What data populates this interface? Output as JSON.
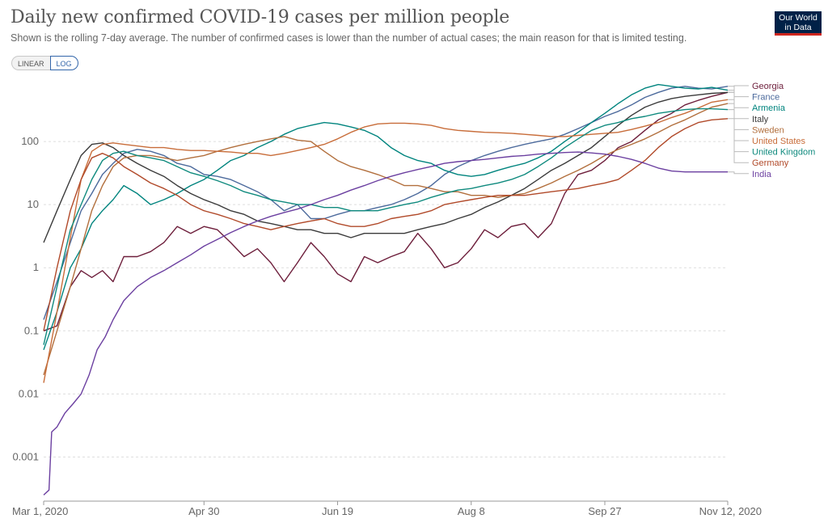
{
  "header": {
    "title": "Daily new confirmed COVID-19 cases per million people",
    "subtitle": "Shown is the rolling 7-day average. The number of confirmed cases is lower than the number of actual cases; the main reason for that is limited testing.",
    "logo_line1": "Our World",
    "logo_line2": "in Data"
  },
  "controls": {
    "linear_label": "LINEAR",
    "log_label": "LOG",
    "selected": "LOG"
  },
  "chart_data": {
    "type": "line",
    "title": "Daily new confirmed COVID-19 cases per million people",
    "xlabel": "",
    "ylabel": "",
    "yscale": "log",
    "ylim": [
      0.0002,
      1000
    ],
    "xlim": [
      0,
      256
    ],
    "x_unit": "days since Mar 1, 2020",
    "x_ticks": [
      {
        "day": 0,
        "label": "Mar 1, 2020"
      },
      {
        "day": 60,
        "label": "Apr 30"
      },
      {
        "day": 110,
        "label": "Jun 19"
      },
      {
        "day": 160,
        "label": "Aug 8"
      },
      {
        "day": 210,
        "label": "Sep 27"
      },
      {
        "day": 256,
        "label": "Nov 12, 2020"
      }
    ],
    "y_ticks": [
      {
        "value": 0.001,
        "label": "0.001"
      },
      {
        "value": 0.01,
        "label": "0.01"
      },
      {
        "value": 0.1,
        "label": "0.1"
      },
      {
        "value": 1,
        "label": "1"
      },
      {
        "value": 10,
        "label": "10"
      },
      {
        "value": 100,
        "label": "100"
      }
    ],
    "series": [
      {
        "name": "Georgia",
        "color": "#6d1e3b",
        "x": [
          0,
          5,
          10,
          14,
          18,
          22,
          26,
          30,
          35,
          40,
          45,
          50,
          55,
          60,
          65,
          70,
          75,
          80,
          85,
          90,
          95,
          100,
          105,
          110,
          115,
          120,
          125,
          130,
          135,
          140,
          145,
          150,
          155,
          160,
          165,
          170,
          175,
          180,
          185,
          190,
          195,
          200,
          205,
          210,
          215,
          220,
          225,
          230,
          235,
          240,
          245,
          250,
          256
        ],
        "values": [
          0.1,
          0.12,
          0.5,
          0.9,
          0.7,
          0.9,
          0.6,
          1.5,
          1.5,
          1.8,
          2.5,
          4.5,
          3.5,
          4.5,
          4,
          2.5,
          1.5,
          2,
          1.2,
          0.6,
          1.2,
          2.5,
          1.5,
          0.8,
          0.6,
          1.5,
          1.2,
          1.5,
          1.8,
          3.5,
          2,
          1,
          1.2,
          2,
          4,
          3,
          4.5,
          5,
          3,
          5,
          15,
          30,
          35,
          50,
          80,
          100,
          150,
          220,
          280,
          380,
          450,
          520,
          600
        ]
      },
      {
        "name": "France",
        "color": "#4c6a9c",
        "x": [
          0,
          5,
          10,
          14,
          18,
          22,
          26,
          30,
          35,
          40,
          45,
          50,
          55,
          60,
          65,
          70,
          75,
          80,
          85,
          90,
          95,
          100,
          105,
          110,
          115,
          120,
          125,
          130,
          135,
          140,
          145,
          150,
          155,
          160,
          165,
          170,
          175,
          180,
          185,
          190,
          195,
          200,
          205,
          210,
          215,
          220,
          225,
          230,
          235,
          240,
          245,
          250,
          256
        ],
        "values": [
          0.15,
          0.6,
          2.5,
          8,
          15,
          30,
          45,
          65,
          75,
          70,
          60,
          45,
          40,
          30,
          28,
          25,
          20,
          16,
          12,
          8,
          10,
          6,
          6,
          7,
          8,
          8,
          9,
          10,
          12,
          15,
          20,
          30,
          40,
          50,
          60,
          70,
          80,
          90,
          100,
          110,
          130,
          160,
          200,
          250,
          300,
          380,
          500,
          600,
          700,
          750,
          700,
          680,
          750
        ]
      },
      {
        "name": "Armenia",
        "color": "#00847e",
        "x": [
          0,
          5,
          10,
          14,
          18,
          22,
          26,
          30,
          35,
          40,
          45,
          50,
          55,
          60,
          65,
          70,
          75,
          80,
          85,
          90,
          95,
          100,
          105,
          110,
          115,
          120,
          125,
          130,
          135,
          140,
          145,
          150,
          155,
          160,
          165,
          170,
          175,
          180,
          185,
          190,
          195,
          200,
          205,
          210,
          215,
          220,
          225,
          230,
          235,
          240,
          245,
          250,
          256
        ],
        "values": [
          0.05,
          0.2,
          1,
          2,
          5,
          8,
          12,
          20,
          15,
          10,
          12,
          15,
          20,
          25,
          35,
          50,
          60,
          80,
          100,
          130,
          160,
          180,
          200,
          190,
          170,
          150,
          120,
          80,
          60,
          50,
          45,
          35,
          30,
          28,
          30,
          35,
          40,
          45,
          55,
          70,
          100,
          140,
          200,
          280,
          400,
          550,
          700,
          800,
          750,
          700,
          680,
          720,
          650
        ]
      },
      {
        "name": "Italy",
        "color": "#3b3b3b",
        "x": [
          0,
          5,
          10,
          14,
          18,
          22,
          26,
          30,
          35,
          40,
          45,
          50,
          55,
          60,
          65,
          70,
          75,
          80,
          85,
          90,
          95,
          100,
          105,
          110,
          115,
          120,
          125,
          130,
          135,
          140,
          145,
          150,
          155,
          160,
          165,
          170,
          175,
          180,
          185,
          190,
          195,
          200,
          205,
          210,
          215,
          220,
          225,
          230,
          235,
          240,
          245,
          250,
          256
        ],
        "values": [
          2.5,
          8,
          25,
          60,
          90,
          95,
          80,
          60,
          45,
          35,
          28,
          20,
          15,
          12,
          10,
          8,
          7,
          5.5,
          5,
          4.5,
          4,
          4,
          3.5,
          3.5,
          3,
          3.5,
          3.5,
          3.5,
          3.5,
          4,
          4.5,
          5,
          6,
          7,
          9,
          11,
          14,
          18,
          25,
          35,
          45,
          60,
          80,
          120,
          180,
          260,
          350,
          420,
          480,
          520,
          550,
          580,
          600
        ]
      },
      {
        "name": "Sweden",
        "color": "#b26f3d",
        "x": [
          0,
          5,
          10,
          14,
          18,
          22,
          26,
          30,
          35,
          40,
          45,
          50,
          55,
          60,
          65,
          70,
          75,
          80,
          85,
          90,
          95,
          100,
          105,
          110,
          115,
          120,
          125,
          130,
          135,
          140,
          145,
          150,
          155,
          160,
          165,
          170,
          175,
          180,
          185,
          190,
          195,
          200,
          205,
          210,
          215,
          220,
          225,
          230,
          235,
          240,
          245,
          250,
          256
        ],
        "values": [
          0.02,
          0.1,
          0.5,
          2,
          8,
          20,
          40,
          55,
          60,
          60,
          55,
          50,
          55,
          60,
          70,
          80,
          90,
          100,
          110,
          120,
          105,
          100,
          70,
          50,
          40,
          35,
          30,
          25,
          20,
          20,
          18,
          16,
          16,
          14,
          14,
          13,
          14,
          15,
          18,
          22,
          28,
          35,
          45,
          60,
          75,
          90,
          110,
          140,
          180,
          220,
          280,
          350,
          400
        ]
      },
      {
        "name": "United States",
        "color": "#c86d3a",
        "x": [
          0,
          5,
          10,
          14,
          18,
          22,
          26,
          30,
          35,
          40,
          45,
          50,
          55,
          60,
          65,
          70,
          75,
          80,
          85,
          90,
          95,
          100,
          105,
          110,
          115,
          120,
          125,
          130,
          135,
          140,
          145,
          150,
          155,
          160,
          165,
          170,
          175,
          180,
          185,
          190,
          195,
          200,
          205,
          210,
          215,
          220,
          225,
          230,
          235,
          240,
          245,
          250,
          256
        ],
        "values": [
          0.015,
          0.2,
          3,
          25,
          70,
          90,
          95,
          90,
          85,
          80,
          80,
          75,
          72,
          72,
          70,
          68,
          65,
          65,
          60,
          65,
          72,
          80,
          90,
          110,
          140,
          170,
          190,
          195,
          195,
          190,
          180,
          160,
          150,
          145,
          140,
          138,
          135,
          130,
          125,
          120,
          120,
          125,
          130,
          135,
          140,
          155,
          175,
          200,
          240,
          280,
          340,
          420,
          460
        ]
      },
      {
        "name": "United Kingdom",
        "color": "#0f8a7e",
        "x": [
          0,
          5,
          10,
          14,
          18,
          22,
          26,
          30,
          35,
          40,
          45,
          50,
          55,
          60,
          65,
          70,
          75,
          80,
          85,
          90,
          95,
          100,
          105,
          110,
          115,
          120,
          125,
          130,
          135,
          140,
          145,
          150,
          155,
          160,
          165,
          170,
          175,
          180,
          185,
          190,
          195,
          200,
          205,
          210,
          215,
          220,
          225,
          230,
          235,
          240,
          245,
          250,
          256
        ],
        "values": [
          0.06,
          0.5,
          4,
          10,
          25,
          50,
          65,
          70,
          60,
          55,
          50,
          40,
          32,
          28,
          24,
          20,
          16,
          14,
          12,
          11,
          10,
          10,
          9,
          9,
          8,
          8,
          8,
          9,
          10,
          11,
          13,
          15,
          17,
          18,
          20,
          22,
          25,
          30,
          40,
          55,
          80,
          110,
          150,
          180,
          200,
          230,
          250,
          280,
          300,
          320,
          330,
          330,
          320
        ]
      },
      {
        "name": "Germany",
        "color": "#b14a2a",
        "x": [
          0,
          5,
          10,
          14,
          18,
          22,
          26,
          30,
          35,
          40,
          45,
          50,
          55,
          60,
          65,
          70,
          75,
          80,
          85,
          90,
          95,
          100,
          105,
          110,
          115,
          120,
          125,
          130,
          135,
          140,
          145,
          150,
          155,
          160,
          165,
          170,
          175,
          180,
          185,
          190,
          195,
          200,
          205,
          210,
          215,
          220,
          225,
          230,
          235,
          240,
          245,
          250,
          256
        ],
        "values": [
          0.1,
          1,
          8,
          25,
          55,
          65,
          55,
          40,
          30,
          22,
          18,
          14,
          10,
          8,
          7,
          6,
          5,
          4.5,
          4,
          4.5,
          5,
          5.5,
          6,
          5,
          4.5,
          4.5,
          5,
          6,
          6.5,
          7,
          8,
          10,
          11,
          12,
          13,
          14,
          14,
          14,
          15,
          16,
          17,
          18,
          20,
          22,
          25,
          35,
          50,
          80,
          120,
          160,
          200,
          220,
          230
        ]
      },
      {
        "name": "India",
        "color": "#6b3fa0",
        "x": [
          0,
          2,
          3,
          5,
          8,
          11,
          14,
          17,
          20,
          23,
          26,
          30,
          35,
          40,
          45,
          50,
          55,
          60,
          65,
          70,
          75,
          80,
          85,
          90,
          95,
          100,
          105,
          110,
          115,
          120,
          125,
          130,
          135,
          140,
          145,
          150,
          155,
          160,
          165,
          170,
          175,
          180,
          185,
          190,
          195,
          200,
          205,
          210,
          215,
          220,
          225,
          230,
          235,
          240,
          245,
          250,
          256
        ],
        "values": [
          0.00025,
          0.0003,
          0.0025,
          0.003,
          0.005,
          0.007,
          0.01,
          0.02,
          0.05,
          0.08,
          0.15,
          0.3,
          0.5,
          0.7,
          0.9,
          1.2,
          1.6,
          2.2,
          2.8,
          3.6,
          4.5,
          5.5,
          6.5,
          7.5,
          8.5,
          10,
          12,
          14,
          17,
          20,
          24,
          28,
          32,
          36,
          40,
          45,
          48,
          50,
          52,
          55,
          58,
          60,
          63,
          65,
          67,
          68,
          66,
          63,
          58,
          52,
          45,
          38,
          34,
          33,
          33,
          33,
          33
        ]
      }
    ]
  }
}
